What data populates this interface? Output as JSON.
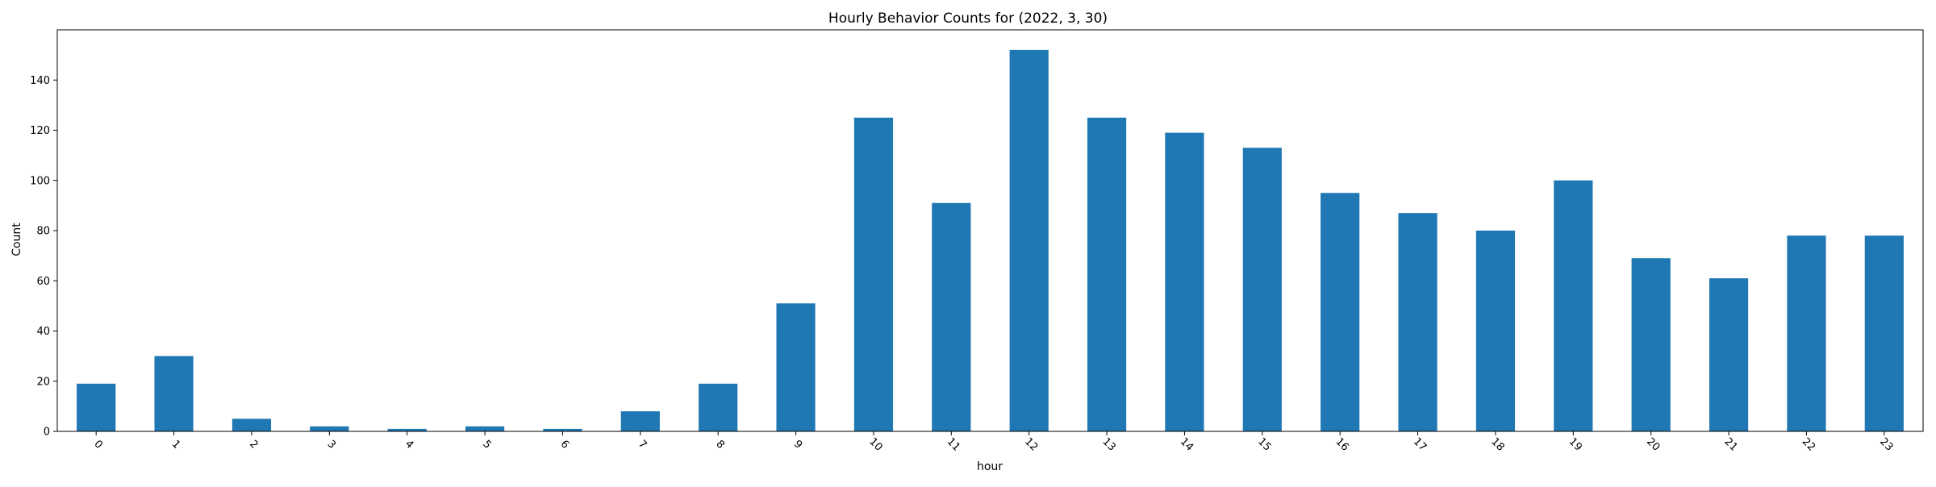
{
  "chart_data": {
    "type": "bar",
    "title": "Hourly Behavior Counts for (2022, 3, 30)",
    "xlabel": "hour",
    "ylabel": "Count",
    "categories": [
      "0",
      "1",
      "2",
      "3",
      "4",
      "5",
      "6",
      "7",
      "8",
      "9",
      "10",
      "11",
      "12",
      "13",
      "14",
      "15",
      "16",
      "17",
      "18",
      "19",
      "20",
      "21",
      "22",
      "23"
    ],
    "values": [
      19,
      30,
      5,
      2,
      1,
      2,
      1,
      8,
      19,
      51,
      125,
      91,
      152,
      125,
      119,
      113,
      95,
      87,
      80,
      100,
      69,
      61,
      78,
      78
    ],
    "ylim": [
      0,
      160
    ],
    "yticks": [
      0,
      20,
      40,
      60,
      80,
      100,
      120,
      140
    ],
    "bar_color": "#1f77b4",
    "grid": false,
    "legend": "none"
  }
}
